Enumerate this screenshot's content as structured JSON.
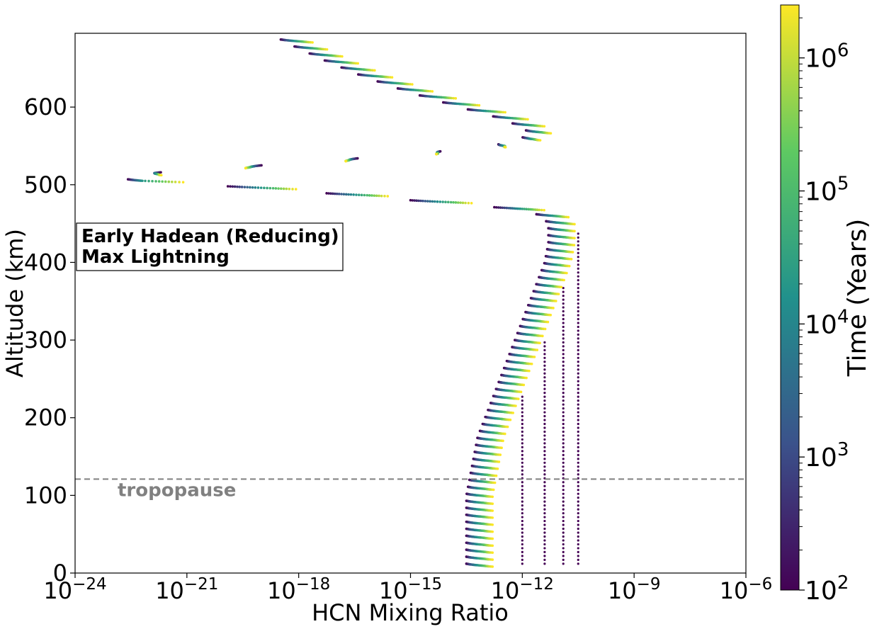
{
  "chart_data": {
    "type": "scatter",
    "xlabel": "HCN Mixing Ratio",
    "ylabel": "Altitude (km)",
    "xscale": "log",
    "xlim": [
      1e-24,
      1e-06
    ],
    "ylim": [
      0,
      695
    ],
    "x_ticks": [
      {
        "base": "10",
        "exp": "−24"
      },
      {
        "base": "10",
        "exp": "−21"
      },
      {
        "base": "10",
        "exp": "−18"
      },
      {
        "base": "10",
        "exp": "−15"
      },
      {
        "base": "10",
        "exp": "−12"
      },
      {
        "base": "10",
        "exp": "−9"
      },
      {
        "base": "10",
        "exp": "−6"
      }
    ],
    "x_tick_values": [
      -24,
      -21,
      -18,
      -15,
      -12,
      -9,
      -6
    ],
    "y_ticks": [
      "0",
      "100",
      "200",
      "300",
      "400",
      "500",
      "600"
    ],
    "y_tick_values": [
      0,
      100,
      200,
      300,
      400,
      500,
      600
    ],
    "grid": false,
    "annotation": {
      "line1": "Early Hadean (Reducing)",
      "line2": "Max Lightning"
    },
    "tropopause": {
      "altitude_km": 121,
      "label": "tropopause",
      "color": "#808080"
    },
    "colorbar": {
      "label": "Time (Years)",
      "scale": "log",
      "range": [
        100,
        2500000
      ],
      "ticks": [
        {
          "base": "10",
          "exp": "2",
          "value": 2
        },
        {
          "base": "10",
          "exp": "3",
          "value": 3
        },
        {
          "base": "10",
          "exp": "4",
          "value": 4
        },
        {
          "base": "10",
          "exp": "5",
          "value": 5
        },
        {
          "base": "10",
          "exp": "6",
          "value": 6
        }
      ],
      "colormap": [
        "#440154",
        "#3b528b",
        "#21918c",
        "#5ec962",
        "#fde725"
      ]
    },
    "profile_altitudes_km": [
      12,
      25,
      50,
      75,
      100,
      125,
      150,
      175,
      200,
      225,
      250,
      275,
      300,
      325,
      350,
      375,
      400,
      425,
      450,
      460,
      465,
      470,
      480,
      490,
      500,
      505,
      510,
      515,
      520,
      530,
      540,
      550,
      560,
      570,
      575,
      580,
      590,
      600,
      620,
      640,
      660,
      680,
      695
    ],
    "profiles": [
      {
        "time_years": 100,
        "log10_x_shift": 0,
        "log10_x": [
          -13.5,
          -13.5,
          -13.5,
          -13.5,
          -13.5,
          -13.4,
          -13.3,
          -13.2,
          -13.0,
          -12.8,
          -12.6,
          -12.4,
          -12.2,
          -12.0,
          -11.8,
          -11.6,
          -11.4,
          -11.3,
          -11.3,
          -11.5,
          -11.8,
          -12.5,
          -15.0,
          -17.5,
          -20.5,
          -22.5,
          -22.7,
          -22.0,
          -20.5,
          -17.5,
          -14.8,
          -12.8,
          -12.0,
          -11.9,
          -12.1,
          -12.3,
          -12.9,
          -13.7,
          -15.1,
          -16.3,
          -17.3,
          -18.2,
          -18.8
        ]
      },
      {
        "time_years": 1000,
        "log10_x_shift": 0.1
      },
      {
        "time_years": 10000,
        "log10_x_shift": 0.25
      },
      {
        "time_years": 100000,
        "log10_x_shift": 0.45
      },
      {
        "time_years": 1000000,
        "log10_x_shift": 0.6
      },
      {
        "time_years": 2500000,
        "log10_x_shift": 0.7
      }
    ],
    "initial_vertical_profiles": [
      {
        "log10_x": -12.0,
        "alt_range_km": [
          12,
          230
        ],
        "color": "#440154"
      },
      {
        "log10_x": -11.4,
        "alt_range_km": [
          12,
          300
        ],
        "color": "#440154"
      },
      {
        "log10_x": -10.9,
        "alt_range_km": [
          12,
          370
        ],
        "color": "#440154"
      },
      {
        "log10_x": -10.5,
        "alt_range_km": [
          12,
          440
        ],
        "color": "#440154"
      }
    ]
  }
}
